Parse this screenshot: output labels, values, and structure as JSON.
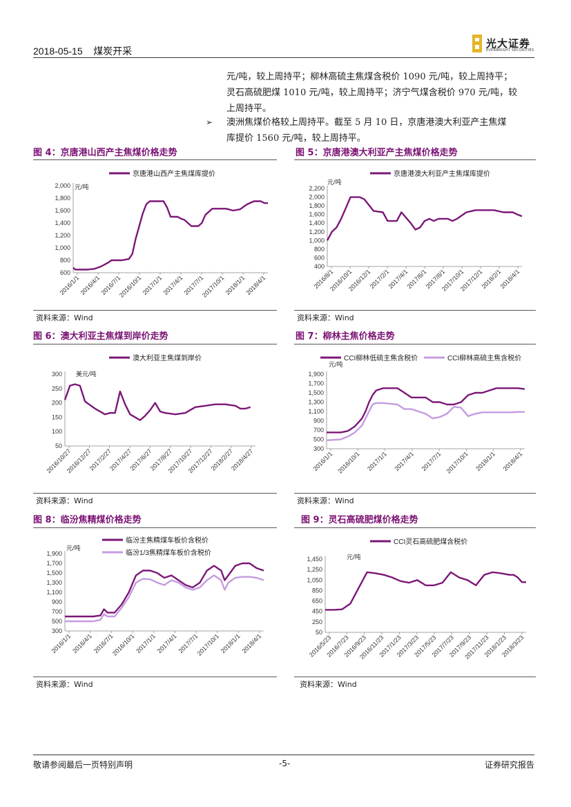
{
  "header": {
    "date": "2018-05-15",
    "section": "煤炭开采",
    "logo_cn": "光大证券",
    "logo_en": "EVERBRIGHT SECURITIES"
  },
  "body": {
    "line1": "元/吨，较上周持平；柳林高硫主焦煤含税价 1090 元/吨，较上周持平；",
    "line2": "灵石高硫肥煤 1010 元/吨，较上周持平；济宁气煤含税价 970 元/吨，较",
    "line3": "上周持平。",
    "bullet_symbol": "➢",
    "line4": "澳洲焦煤价格较上周持平。截至 5 月 10 日，京唐港澳大利亚产主焦煤",
    "line5": "库提价 1560 元/吨，较上周持平。"
  },
  "source_text": "资料来源：Wind",
  "footer": {
    "left": "敬请参阅最后一页特别声明",
    "page": "-5-",
    "right": "证券研究报告"
  },
  "colors": {
    "series_dark": "#7b1777",
    "series_light": "#c59be0",
    "title": "#7a1173"
  },
  "figures": [
    {
      "id": "fig4",
      "title": "图 4：京唐港山西产主焦煤价格走势",
      "chart_data": {
        "type": "line",
        "unit": "元/吨",
        "ylim": [
          600,
          2000
        ],
        "yticks": [
          "2,000",
          "1,800",
          "1,600",
          "1,400",
          "1,200",
          "1,000",
          "800",
          "600"
        ],
        "xticks": [
          "2016/1/1",
          "2016/4/1",
          "2016/7/1",
          "2016/10/1",
          "2017/1/1",
          "2017/4/1",
          "2017/7/1",
          "2017/10/1",
          "2018/1/1",
          "2018/4/1"
        ],
        "xrange": [
          0,
          28
        ],
        "series": [
          {
            "name": "京唐港山西产主焦煤库提价",
            "color": "dark",
            "x": [
              0,
              0.3,
              1,
              2,
              3,
              4,
              5,
              5.5,
              6,
              7,
              8,
              8.5,
              9,
              9.5,
              10,
              10.5,
              11,
              12,
              13,
              13.5,
              14,
              15,
              15.5,
              16,
              17,
              18,
              18.5,
              19,
              20,
              21,
              22,
              23,
              24,
              25,
              26,
              27,
              27.5,
              28
            ],
            "y": [
              680,
              650,
              650,
              650,
              660,
              700,
              760,
              800,
              800,
              800,
              820,
              900,
              1150,
              1350,
              1550,
              1700,
              1750,
              1750,
              1750,
              1650,
              1500,
              1500,
              1470,
              1450,
              1350,
              1350,
              1400,
              1530,
              1630,
              1630,
              1630,
              1600,
              1620,
              1700,
              1750,
              1750,
              1720,
              1720
            ]
          }
        ]
      }
    },
    {
      "id": "fig5",
      "title": "图 5：京唐港澳大利亚产主焦煤价格走势",
      "chart_data": {
        "type": "line",
        "unit": "元/吨",
        "ylim": [
          400,
          2200
        ],
        "yticks": [
          "2,200",
          "2,000",
          "1,800",
          "1,600",
          "1,400",
          "1,200",
          "1,000",
          "800",
          "600",
          "400"
        ],
        "xticks": [
          "2016/8/1",
          "2016/10/1",
          "2016/12/1",
          "2017/2/1",
          "2017/4/1",
          "2017/6/1",
          "2017/8/1",
          "2017/10/1",
          "2017/12/1",
          "2018/2/1",
          "2018/4/1"
        ],
        "xrange": [
          0,
          21
        ],
        "series": [
          {
            "name": "京唐港澳大利亚产主焦煤库提价",
            "color": "dark",
            "x": [
              0,
              0.5,
              1,
              1.5,
              2,
              2.5,
              3,
              3.5,
              4,
              5,
              6,
              6.5,
              7,
              7.5,
              8,
              9,
              9.5,
              10,
              10.5,
              11,
              11.5,
              12,
              13,
              13.5,
              14,
              15,
              16,
              17,
              18,
              19,
              20,
              20.5,
              21
            ],
            "y": [
              1000,
              1200,
              1300,
              1500,
              1750,
              2000,
              2000,
              2000,
              1950,
              1680,
              1650,
              1450,
              1450,
              1450,
              1650,
              1400,
              1250,
              1300,
              1450,
              1500,
              1450,
              1500,
              1500,
              1450,
              1500,
              1650,
              1700,
              1700,
              1700,
              1650,
              1650,
              1600,
              1560
            ]
          }
        ]
      }
    },
    {
      "id": "fig6",
      "title": "图 6：澳大利亚主焦煤到岸价走势",
      "chart_data": {
        "type": "line",
        "unit": "美元/吨",
        "ylim": [
          50,
          300
        ],
        "yticks": [
          "300",
          "250",
          "200",
          "150",
          "100",
          "50"
        ],
        "xticks": [
          "2016/10/27",
          "2016/12/27",
          "2017/2/27",
          "2017/4/27",
          "2017/6/27",
          "2017/8/27",
          "2017/10/27",
          "2017/12/27",
          "2018/2/27",
          "2018/4/27"
        ],
        "xrange": [
          0,
          19
        ],
        "series": [
          {
            "name": "澳大利亚主焦煤到岸价",
            "color": "dark",
            "x": [
              0,
              0.5,
              1,
              1.5,
              2,
              3,
              4,
              4.5,
              5,
              5.5,
              6,
              6.5,
              7,
              7.5,
              8,
              8.5,
              9,
              9.5,
              10,
              11,
              12,
              13,
              14,
              15,
              16,
              17,
              17.5,
              18,
              18.5
            ],
            "y": [
              210,
              260,
              265,
              260,
              205,
              180,
              160,
              165,
              165,
              240,
              195,
              160,
              150,
              140,
              155,
              175,
              200,
              170,
              165,
              160,
              165,
              185,
              190,
              195,
              195,
              190,
              180,
              180,
              185
            ]
          }
        ]
      }
    },
    {
      "id": "fig7",
      "title": "图 7：柳林主焦价格走势",
      "chart_data": {
        "type": "line",
        "unit": "元/吨",
        "ylim": [
          300,
          1900
        ],
        "yticks": [
          "1,900",
          "1,700",
          "1,500",
          "1,300",
          "1,100",
          "900",
          "700",
          "500",
          "300"
        ],
        "xticks": [
          "2016/1/1",
          "2016/10/1",
          "2017/1/1",
          "2017/4/1",
          "2017/7/1",
          "2017/10/1",
          "2018/1/1",
          "2018/4/1"
        ],
        "xrange": [
          0,
          28
        ],
        "series": [
          {
            "name": "CCI柳林低硫主焦含税价",
            "color": "dark",
            "x": [
              0,
              2,
              3,
              4,
              5,
              5.5,
              6,
              6.5,
              7,
              8,
              10,
              11,
              12,
              13,
              14,
              15,
              16,
              17,
              18,
              19,
              20,
              21,
              22,
              23,
              24,
              25,
              26,
              27,
              28
            ],
            "y": [
              650,
              650,
              680,
              780,
              950,
              1100,
              1300,
              1450,
              1550,
              1600,
              1600,
              1500,
              1400,
              1400,
              1400,
              1300,
              1300,
              1250,
              1250,
              1300,
              1450,
              1500,
              1500,
              1550,
              1600,
              1600,
              1600,
              1600,
              1580
            ]
          },
          {
            "name": "CCI柳林高硫主焦含税价",
            "color": "light",
            "x": [
              0,
              2,
              3,
              4,
              5,
              5.5,
              6,
              6.5,
              7,
              8,
              10,
              11,
              12,
              13,
              14,
              15,
              16,
              17,
              18,
              19,
              20,
              21,
              22,
              23,
              24,
              25,
              26,
              27,
              28
            ],
            "y": [
              480,
              500,
              560,
              650,
              800,
              950,
              1100,
              1250,
              1280,
              1280,
              1250,
              1150,
              1150,
              1100,
              1050,
              950,
              980,
              1050,
              1200,
              1180,
              1000,
              1050,
              1080,
              1080,
              1080,
              1080,
              1080,
              1090,
              1090
            ]
          }
        ]
      }
    },
    {
      "id": "fig8",
      "title": "图 8：临汾焦精煤价格走势",
      "chart_data": {
        "type": "line",
        "unit": "元/吨",
        "ylim": [
          300,
          1900
        ],
        "yticks": [
          "1,900",
          "1,700",
          "1,500",
          "1,300",
          "1,100",
          "900",
          "700",
          "500",
          "300"
        ],
        "xticks": [
          "2016/1/1",
          "2016/4/1",
          "2016/7/1",
          "2016/10/1",
          "2017/1/1",
          "2017/4/1",
          "2017/7/1",
          "2017/10/1",
          "2018/1/1",
          "2018/4/1"
        ],
        "xrange": [
          0,
          28
        ],
        "series": [
          {
            "name": "临汾主焦精煤车板价含税价",
            "color": "dark",
            "x": [
              0,
              4,
              5,
              5.5,
              6,
              7,
              8,
              9,
              10,
              11,
              12,
              13,
              14,
              15,
              16,
              17,
              18,
              19,
              20,
              21,
              22,
              22.5,
              23,
              24,
              25,
              26,
              27,
              28
            ],
            "y": [
              600,
              600,
              620,
              750,
              680,
              680,
              850,
              1100,
              1450,
              1550,
              1550,
              1500,
              1400,
              1450,
              1350,
              1250,
              1200,
              1300,
              1550,
              1650,
              1550,
              1350,
              1450,
              1650,
              1700,
              1700,
              1600,
              1550
            ]
          },
          {
            "name": "临汾1/3焦精煤车板价含税价",
            "color": "light",
            "x": [
              0,
              4,
              5,
              5.5,
              6,
              7,
              8,
              9,
              10,
              11,
              12,
              13,
              14,
              15,
              16,
              17,
              18,
              19,
              20,
              21,
              22,
              22.5,
              23,
              24,
              25,
              26,
              27,
              28
            ],
            "y": [
              500,
              500,
              530,
              650,
              600,
              600,
              780,
              1000,
              1300,
              1380,
              1370,
              1300,
              1250,
              1350,
              1300,
              1200,
              1150,
              1200,
              1350,
              1450,
              1350,
              1150,
              1300,
              1400,
              1420,
              1420,
              1400,
              1350
            ]
          }
        ]
      }
    },
    {
      "id": "fig9",
      "title": "图 9：灵石高硫肥煤价格走势",
      "chart_data": {
        "type": "line",
        "unit": "元/吨",
        "ylim": [
          50,
          1450
        ],
        "yticks": [
          "1,450",
          "1,250",
          "1,050",
          "850",
          "650",
          "450",
          "250",
          "50"
        ],
        "xticks": [
          "2016/5/23",
          "2016/7/23",
          "2016/9/23",
          "2016/11/23",
          "2017/1/23",
          "2017/3/23",
          "2017/5/23",
          "2017/7/23",
          "2017/9/23",
          "2017/11/23",
          "2018/1/23",
          "2018/3/23"
        ],
        "xrange": [
          0,
          24
        ],
        "series": [
          {
            "name": "CCI灵石高硫肥煤含税价",
            "color": "dark",
            "x": [
              0,
              1,
              2,
              3,
              4,
              5,
              6,
              7,
              8,
              9,
              10,
              11,
              12,
              13,
              14,
              15,
              16,
              17,
              18,
              19,
              20,
              21,
              22,
              22.5,
              23,
              23.5,
              24
            ],
            "y": [
              480,
              480,
              490,
              600,
              900,
              1200,
              1180,
              1150,
              1100,
              1030,
              1000,
              1050,
              950,
              950,
              1000,
              1200,
              1100,
              1050,
              950,
              1150,
              1200,
              1180,
              1150,
              1150,
              1100,
              1010,
              1010
            ]
          }
        ]
      }
    }
  ]
}
